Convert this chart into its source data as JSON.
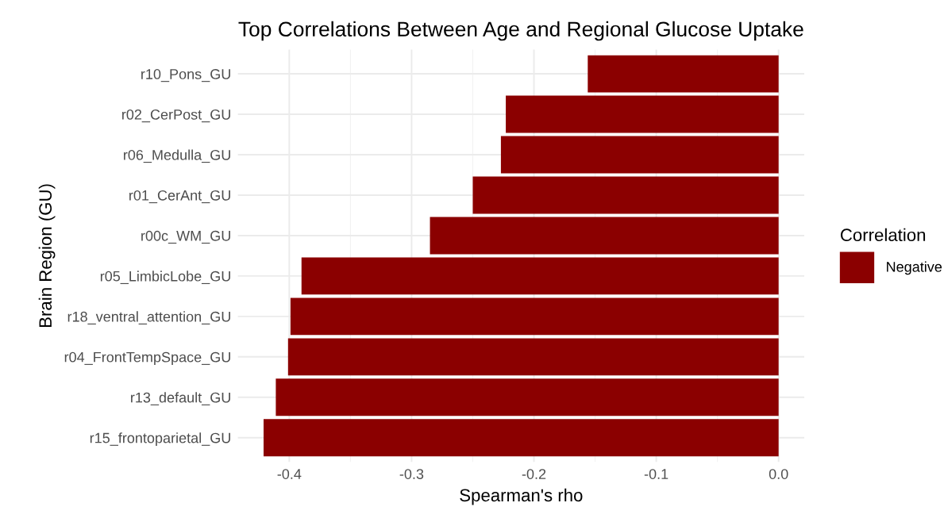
{
  "chart_data": {
    "type": "bar",
    "orientation": "horizontal",
    "title": "Top Correlations Between Age and Regional Glucose Uptake",
    "xlabel": "Spearman's rho",
    "ylabel": "Brain Region (GU)",
    "legend_title": "Correlation",
    "categories": [
      "r10_Pons_GU",
      "r02_CerPost_GU",
      "r06_Medulla_GU",
      "r01_CerAnt_GU",
      "r00c_WM_GU",
      "r05_LimbicLobe_GU",
      "r18_ventral_attention_GU",
      "r04_FrontTempSpace_GU",
      "r13_default_GU",
      "r15_frontoparietal_GU"
    ],
    "series": [
      {
        "name": "Negative",
        "color": "#8b0000",
        "values": [
          -0.156,
          -0.223,
          -0.227,
          -0.25,
          -0.285,
          -0.39,
          -0.399,
          -0.401,
          -0.411,
          -0.421
        ]
      }
    ],
    "xlim": [
      -0.442,
      0.021
    ],
    "xticks": [
      {
        "value": -0.4,
        "label": "-0.4"
      },
      {
        "value": -0.3,
        "label": "-0.3"
      },
      {
        "value": -0.2,
        "label": "-0.2"
      },
      {
        "value": -0.1,
        "label": "-0.1"
      },
      {
        "value": 0.0,
        "label": "0.0"
      }
    ],
    "grid": true,
    "legend": "right"
  }
}
